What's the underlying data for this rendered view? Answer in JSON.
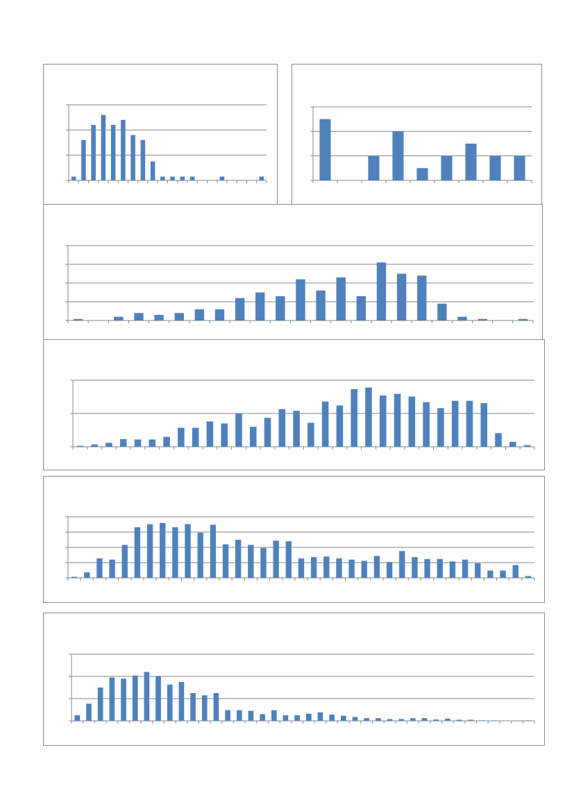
{
  "chart_data": [
    {
      "type": "bar",
      "title": "",
      "grid": true,
      "legend": "none",
      "color": "#4f81bd",
      "ylim": [
        0,
        6
      ],
      "values": [
        0.3,
        3.2,
        4.4,
        5.2,
        4.4,
        4.8,
        3.6,
        3.2,
        1.5,
        0.3,
        0.3,
        0.3,
        0.3,
        0,
        0,
        0.3,
        0,
        0,
        0,
        0.3
      ]
    },
    {
      "type": "bar",
      "title": "",
      "grid": true,
      "legend": "none",
      "color": "#4f81bd",
      "ylim": [
        0,
        6
      ],
      "values": [
        5,
        0,
        2,
        4,
        1,
        2,
        3,
        2,
        2
      ]
    },
    {
      "type": "bar",
      "title": "",
      "grid": true,
      "legend": "none",
      "color": "#4f81bd",
      "ylim": [
        0,
        20
      ],
      "values": [
        0.4,
        0,
        1,
        2,
        1.5,
        2,
        3,
        3,
        6,
        7.5,
        6.5,
        11,
        8,
        11.5,
        6.5,
        15.5,
        12.5,
        12,
        4.5,
        1,
        0.4,
        0,
        0.4
      ]
    },
    {
      "type": "bar",
      "title": "",
      "grid": true,
      "legend": "none",
      "color": "#4f81bd",
      "ylim": [
        0,
        20
      ],
      "values": [
        0.3,
        0.7,
        1.2,
        2.3,
        2.2,
        2.2,
        3,
        5.7,
        5.7,
        7.6,
        7,
        10,
        6,
        8.7,
        11.3,
        10.8,
        7.2,
        13.6,
        12.4,
        17.3,
        17.8,
        15.4,
        15.9,
        15.1,
        13.4,
        11.6,
        13.8,
        13.8,
        13.1,
        4.1,
        1.5,
        0.5
      ]
    },
    {
      "type": "bar",
      "title": "",
      "grid": true,
      "legend": "none",
      "color": "#4f81bd",
      "ylim": [
        0,
        40
      ],
      "values": [
        0.7,
        3.6,
        12.8,
        12,
        21.6,
        33.2,
        35.2,
        36,
        33.2,
        35.2,
        29.6,
        34.8,
        22,
        25,
        21.6,
        19.6,
        24.4,
        24,
        12.8,
        13.6,
        14,
        12.8,
        12,
        11.2,
        14.4,
        10.4,
        17.6,
        13.6,
        12.4,
        12.4,
        10.8,
        12,
        9.6,
        4.8,
        4.8,
        8.4,
        1.2
      ]
    },
    {
      "type": "bar",
      "title": "",
      "grid": true,
      "legend": "none",
      "color": "#4f81bd",
      "ylim": [
        0,
        30
      ],
      "values": [
        2.5,
        7.7,
        15,
        19.5,
        19,
        20.4,
        22,
        20.2,
        16.3,
        17.5,
        12.5,
        11.5,
        12.5,
        4.8,
        4.8,
        4.5,
        3,
        4.8,
        2.5,
        2.5,
        3.2,
        3.8,
        2.8,
        2.3,
        1.7,
        1.2,
        1.2,
        0.8,
        0.8,
        1.2,
        1.2,
        0.6,
        1,
        0.5,
        0.5,
        0.2,
        0.2,
        0.1,
        0.1,
        0.2
      ]
    }
  ]
}
